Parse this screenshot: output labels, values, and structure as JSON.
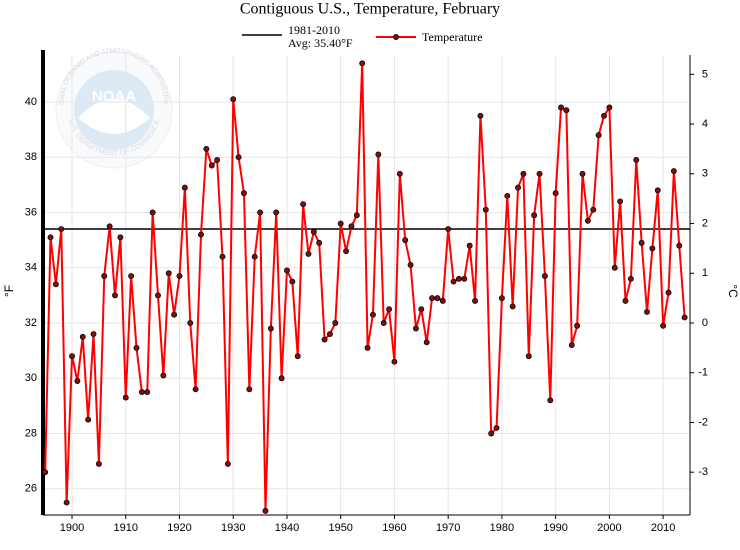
{
  "chart_data": {
    "type": "line",
    "title": "Contiguous U.S., Temperature, February",
    "ylabel": "°F",
    "y2label": "°C",
    "x": [
      1895,
      1896,
      1897,
      1898,
      1899,
      1900,
      1901,
      1902,
      1903,
      1904,
      1905,
      1906,
      1907,
      1908,
      1909,
      1910,
      1911,
      1912,
      1913,
      1914,
      1915,
      1916,
      1917,
      1918,
      1919,
      1920,
      1921,
      1922,
      1923,
      1924,
      1925,
      1926,
      1927,
      1928,
      1929,
      1930,
      1931,
      1932,
      1933,
      1934,
      1935,
      1936,
      1937,
      1938,
      1939,
      1940,
      1941,
      1942,
      1943,
      1944,
      1945,
      1946,
      1947,
      1948,
      1949,
      1950,
      1951,
      1952,
      1953,
      1954,
      1955,
      1956,
      1957,
      1958,
      1959,
      1960,
      1961,
      1962,
      1963,
      1964,
      1965,
      1966,
      1967,
      1968,
      1969,
      1970,
      1971,
      1972,
      1973,
      1974,
      1975,
      1976,
      1977,
      1978,
      1979,
      1980,
      1981,
      1982,
      1983,
      1984,
      1985,
      1986,
      1987,
      1988,
      1989,
      1990,
      1991,
      1992,
      1993,
      1994,
      1995,
      1996,
      1997,
      1998,
      1999,
      2000,
      2001,
      2002,
      2003,
      2004,
      2005,
      2006,
      2007,
      2008,
      2009,
      2010,
      2011,
      2012,
      2013,
      2014
    ],
    "series": [
      {
        "name": "Temperature",
        "color": "#ff0000",
        "marker_color": "#7a1010",
        "values": [
          26.6,
          35.1,
          33.4,
          35.4,
          25.5,
          30.8,
          29.9,
          31.5,
          28.5,
          31.6,
          26.9,
          33.7,
          35.5,
          33.0,
          35.1,
          29.3,
          33.7,
          31.1,
          29.5,
          29.5,
          36.0,
          33.0,
          30.1,
          33.8,
          32.3,
          33.7,
          36.9,
          32.0,
          29.6,
          35.2,
          38.3,
          37.7,
          37.9,
          34.4,
          26.9,
          40.1,
          38.0,
          36.7,
          29.6,
          34.4,
          36.0,
          25.2,
          31.8,
          36.0,
          30.0,
          33.9,
          33.5,
          30.8,
          36.3,
          34.5,
          35.3,
          34.9,
          31.4,
          31.6,
          32.0,
          35.6,
          34.6,
          35.5,
          35.9,
          41.4,
          31.1,
          32.3,
          38.1,
          32.0,
          32.5,
          30.6,
          37.4,
          35.0,
          34.1,
          31.8,
          32.5,
          31.3,
          32.9,
          32.9,
          32.8,
          35.4,
          33.5,
          33.6,
          33.6,
          34.8,
          32.8,
          39.5,
          36.1,
          28.0,
          28.2,
          32.9,
          36.6,
          32.6,
          36.9,
          37.4,
          30.8,
          35.9,
          37.4,
          33.7,
          29.2,
          36.7,
          39.8,
          39.7,
          31.2,
          31.9,
          37.4,
          35.7,
          36.1,
          38.8,
          39.5,
          39.8,
          34.0,
          36.4,
          32.8,
          33.6,
          37.9,
          34.9,
          32.4,
          34.7,
          36.8,
          31.9,
          33.1,
          37.5,
          34.8,
          32.2
        ]
      }
    ],
    "reference_line": {
      "name": "1981-2010",
      "label": "Avg: 35.40°F",
      "value": 35.4,
      "color": "#000000"
    },
    "xlim": [
      1894.6,
      2015
    ],
    "xticks": [
      1900,
      1910,
      1920,
      1930,
      1940,
      1950,
      1960,
      1970,
      1980,
      1990,
      2000,
      2010
    ],
    "ylim": [
      25.05,
      41.7
    ],
    "yticks": [
      26,
      28,
      30,
      32,
      34,
      36,
      38,
      40
    ],
    "y2lim": [
      -3.861,
      5.389
    ],
    "y2ticks": [
      -3,
      -2,
      -1,
      0,
      1,
      2,
      3,
      4,
      5
    ],
    "grid": true
  },
  "logo": {
    "name": "NOAA",
    "ring_top": "NATIONAL OCEANIC AND ATMOSPHERIC ADMINISTRATION",
    "ring_bottom": "U.S. DEPARTMENT OF COMMERCE"
  }
}
